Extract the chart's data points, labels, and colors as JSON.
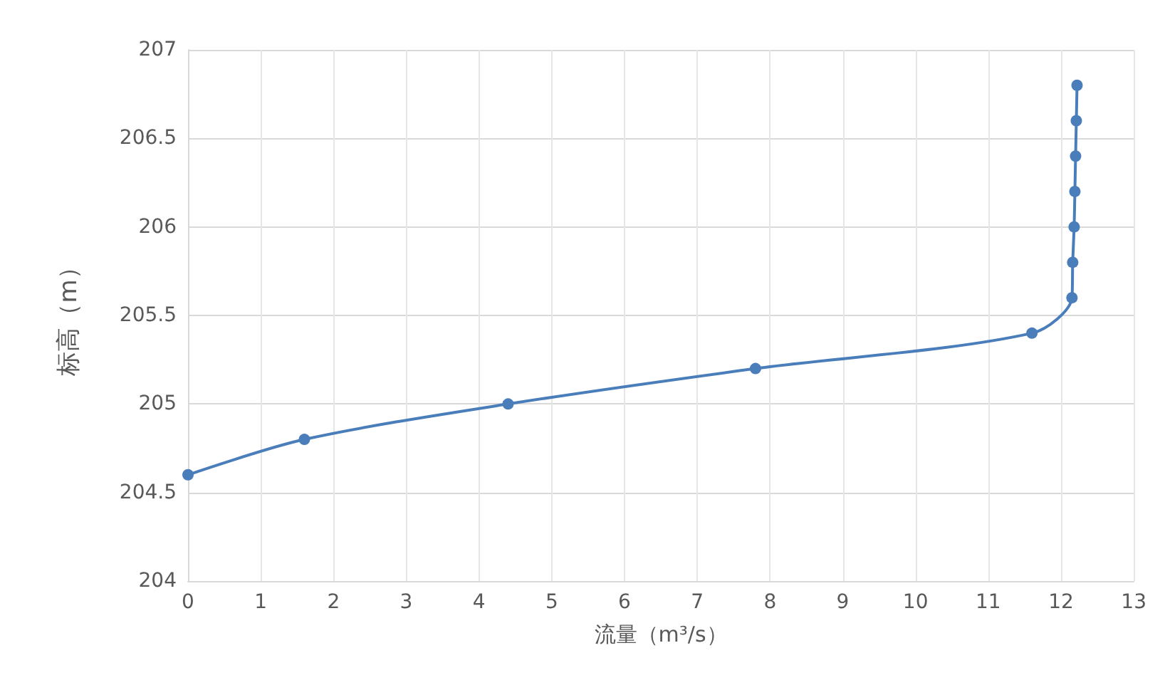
{
  "chart_data": {
    "type": "line",
    "xlabel": "流量（m³/s）",
    "ylabel": "标高（m）",
    "x": [
      0,
      1.6,
      4.4,
      7.8,
      11.6,
      12.15,
      12.16,
      12.18,
      12.19,
      12.2,
      12.21,
      12.22
    ],
    "series": [
      {
        "color": "#4a7ebb",
        "values": [
          204.6,
          204.8,
          205,
          205.2,
          205.4,
          205.6,
          205.8,
          206,
          206.2,
          206.4,
          206.6,
          206.8
        ]
      }
    ],
    "xlim": [
      0,
      13
    ],
    "xticks": [
      0,
      1,
      2,
      3,
      4,
      5,
      6,
      7,
      8,
      9,
      10,
      11,
      12,
      13
    ],
    "ylim": [
      204,
      207
    ],
    "yticks": [
      204,
      204.5,
      205,
      205.5,
      206,
      206.5,
      207
    ],
    "grid": true,
    "marker": "circle",
    "line_style": "solid"
  }
}
